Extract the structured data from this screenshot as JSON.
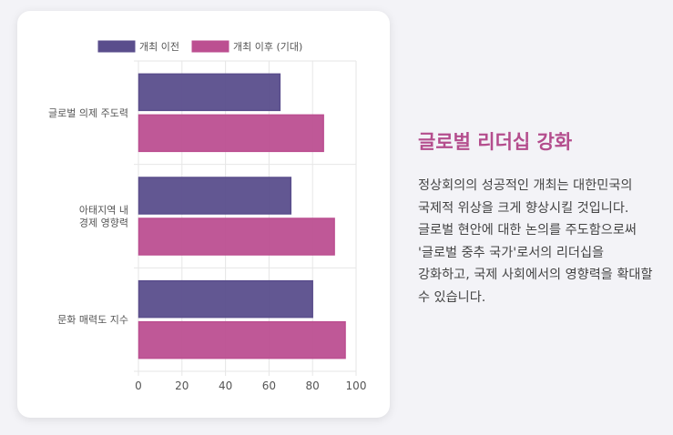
{
  "chart_data": {
    "type": "bar",
    "orientation": "horizontal",
    "categories": [
      [
        "글로벌 의제 주도력"
      ],
      [
        "아태지역 내",
        "경제 영향력"
      ],
      [
        "문화 매력도 지수"
      ]
    ],
    "series": [
      {
        "name": "개최 이전",
        "values": [
          65,
          70,
          80
        ],
        "color": "#5a4e8c"
      },
      {
        "name": "개최 이후 (기대)",
        "values": [
          85,
          90,
          95
        ],
        "color": "#bc4f91"
      }
    ],
    "xlim": [
      0,
      100
    ],
    "xticks": [
      0,
      20,
      40,
      60,
      80,
      100
    ],
    "grid": true,
    "legend": "top-center"
  },
  "panel": {
    "heading": "글로벌 리더십 강화",
    "body": "정상회의의 성공적인 개최는 대한민국의 국제적 위상을 크게 향상시킬 것입니다. 글로벌 현안에 대한 논의를 주도함으로써 '글로벌 중추 국가'로서의 리더십을 강화하고, 국제 사회에서의 영향력을 확대할 수 있습니다."
  }
}
